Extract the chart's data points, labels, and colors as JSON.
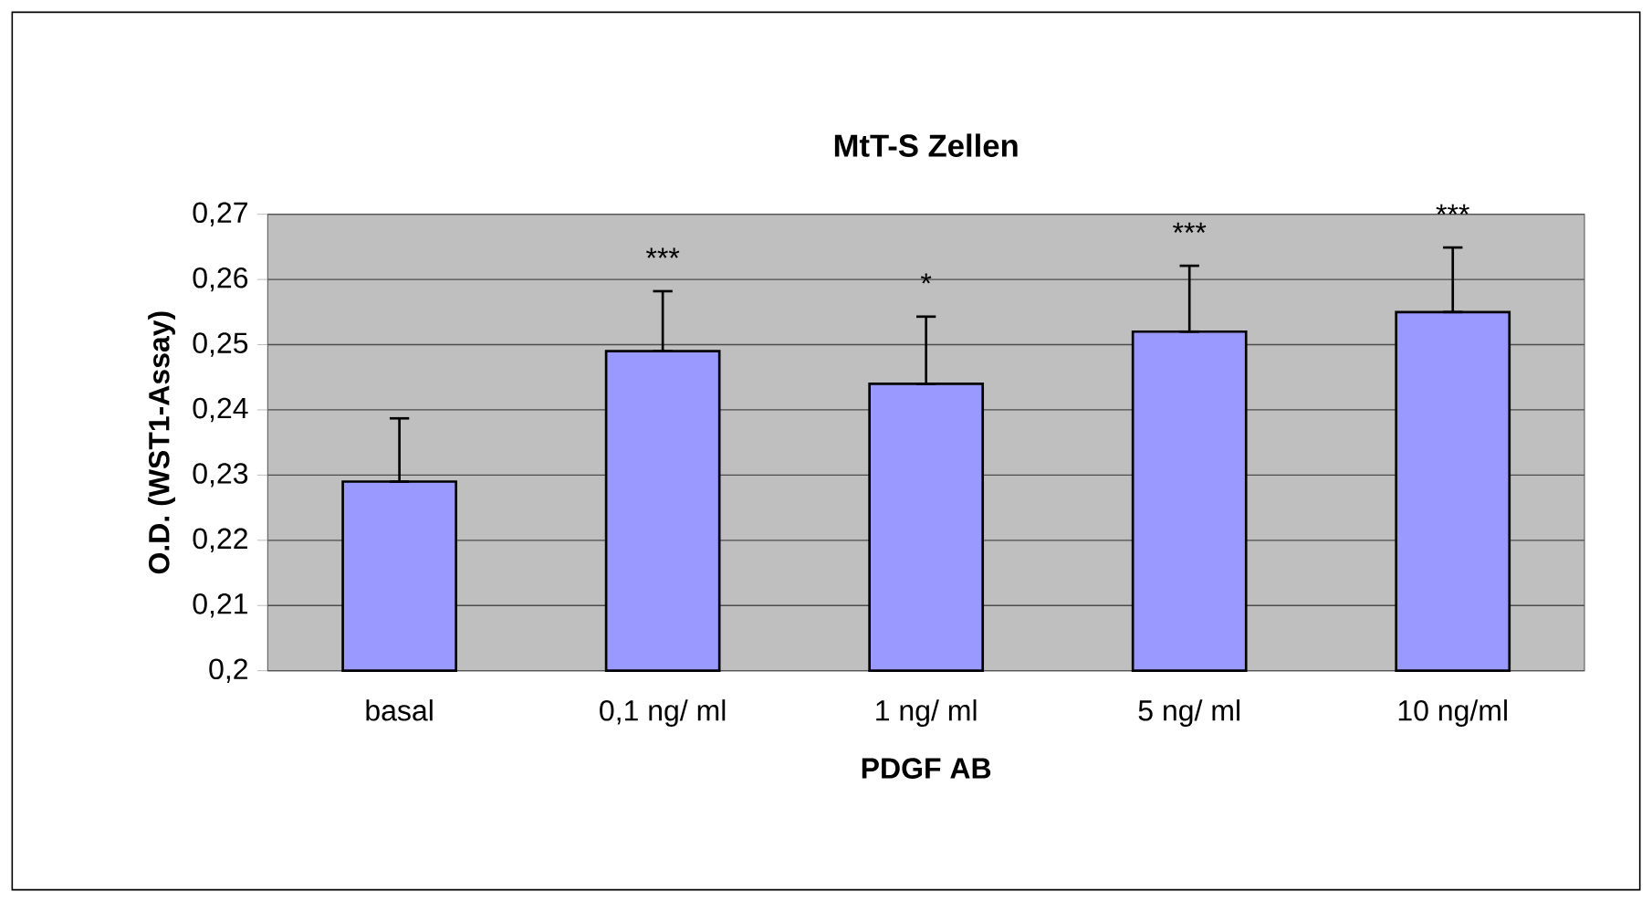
{
  "chart_data": {
    "type": "bar",
    "title": "MtT-S Zellen",
    "xlabel": "PDGF AB",
    "ylabel": "O.D. (WST1-Assay)",
    "categories": [
      "basal",
      "0,1 ng/ ml",
      "1 ng/ ml",
      "5 ng/ ml",
      "10 ng/ml"
    ],
    "values": [
      0.229,
      0.249,
      0.244,
      0.252,
      0.255
    ],
    "errors": [
      [
        0.229,
        0.2387
      ],
      [
        0.249,
        0.2582
      ],
      [
        0.244,
        0.2543
      ],
      [
        0.252,
        0.2621
      ],
      [
        0.255,
        0.2649
      ]
    ],
    "color": "#9999ff",
    "ylim": [
      0.2,
      0.27
    ],
    "yticks": [
      {
        "value": 0.2,
        "label": "0,2"
      },
      {
        "value": 0.21,
        "label": "0,21"
      },
      {
        "value": 0.22,
        "label": "0,22"
      },
      {
        "value": 0.23,
        "label": "0,23"
      },
      {
        "value": 0.24,
        "label": "0,24"
      },
      {
        "value": 0.25,
        "label": "0,25"
      },
      {
        "value": 0.26,
        "label": "0,26"
      },
      {
        "value": 0.27,
        "label": "0,27"
      }
    ],
    "grid": "y",
    "annotations": [
      "***",
      "*",
      "***",
      "***"
    ]
  }
}
